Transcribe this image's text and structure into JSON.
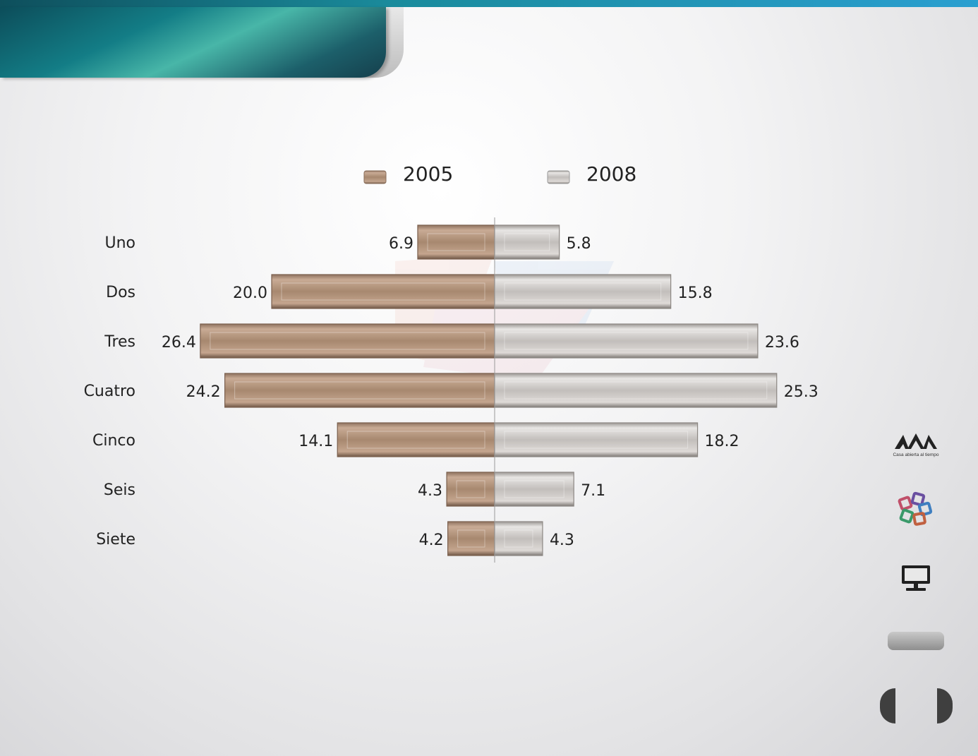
{
  "chart_data": {
    "type": "bar",
    "orientation": "horizontal-diverging",
    "categories": [
      "Uno",
      "Dos",
      "Tres",
      "Cuatro",
      "Cinco",
      "Seis",
      "Siete"
    ],
    "series": [
      {
        "name": "2005",
        "values": [
          6.9,
          20.0,
          26.4,
          24.2,
          14.1,
          4.3,
          4.2
        ],
        "color": "#a88a73",
        "side": "left"
      },
      {
        "name": "2008",
        "values": [
          5.8,
          15.8,
          23.6,
          25.3,
          18.2,
          7.1,
          4.3
        ],
        "color": "#b9b5b2",
        "side": "right"
      }
    ],
    "legend_position": "top",
    "grid": false
  },
  "sidebar": {
    "logo_icon": "uam-logo",
    "logo_tagline": "Casa abierta al tiempo",
    "icons": [
      "colored-squares-icon",
      "monitor-icon"
    ],
    "nav": [
      "prev-arrow-icon",
      "next-arrow-icon"
    ]
  }
}
